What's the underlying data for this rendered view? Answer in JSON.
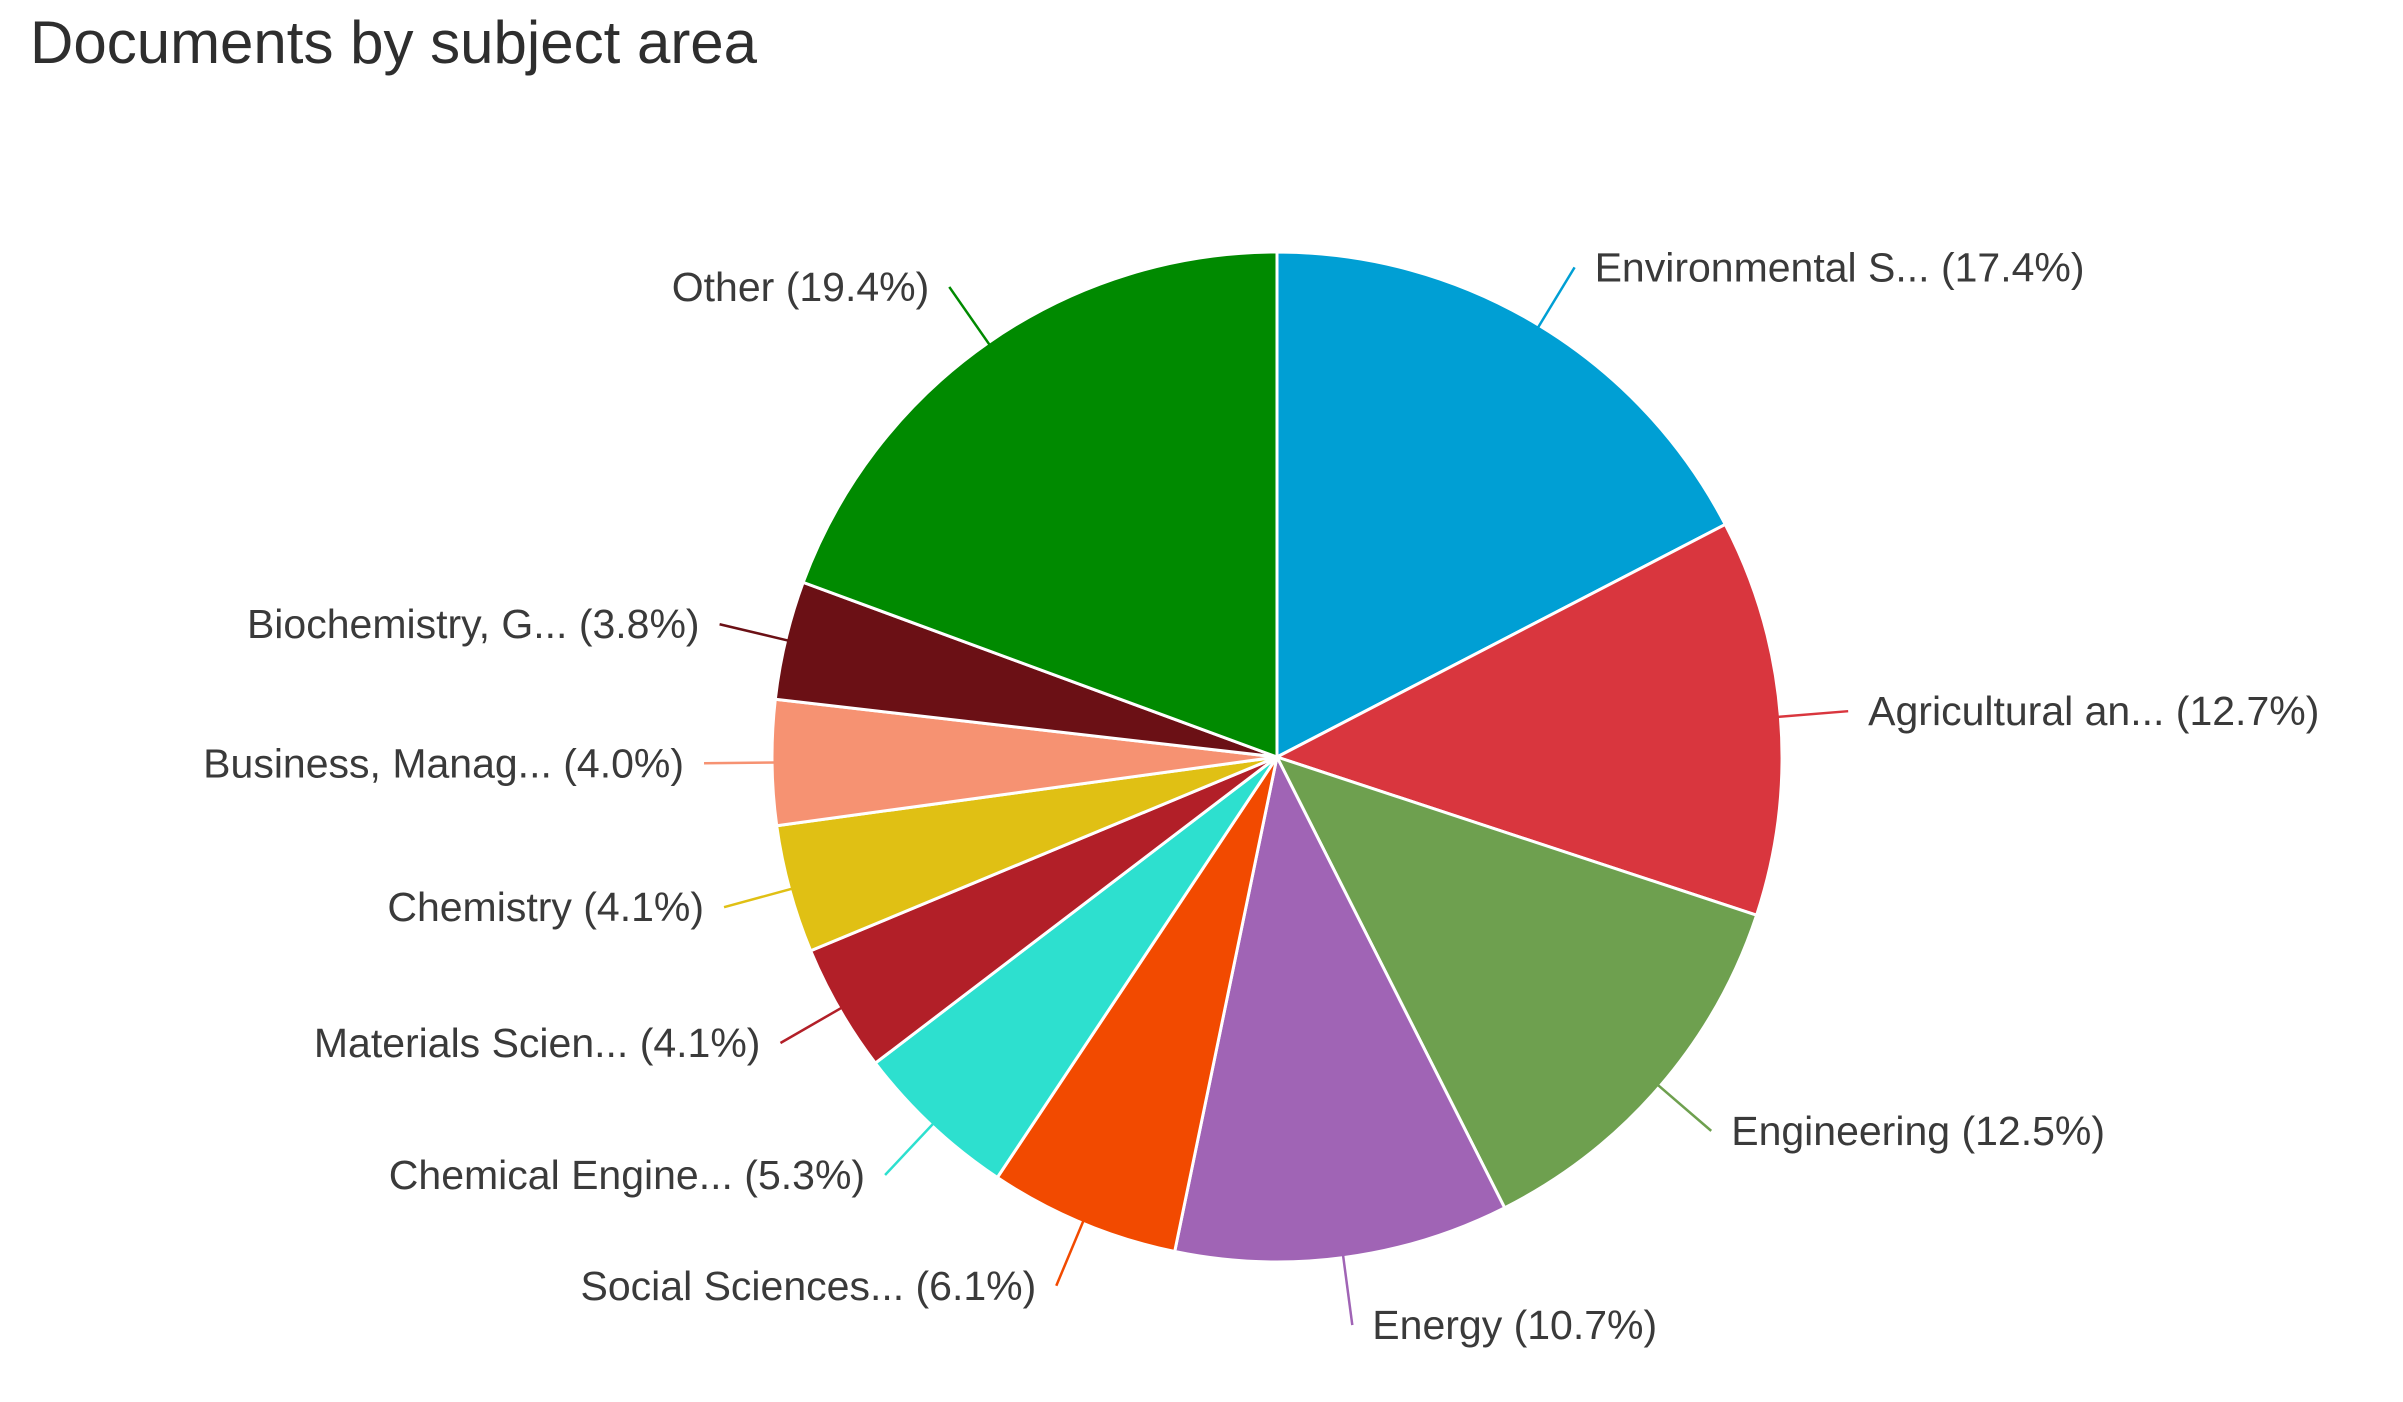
{
  "chart_data": {
    "type": "pie",
    "title": "Documents by subject area",
    "series": [
      {
        "values": [
          17.4,
          12.7,
          12.5,
          10.7,
          6.1,
          5.3,
          4.1,
          4.1,
          4.0,
          3.8,
          19.4
        ],
        "labels": [
          "Environmental S... (17.4%)",
          "Agricultural an... (12.7%)",
          "Engineering (12.5%)",
          "Energy (10.7%)",
          "Social Sciences... (6.1%)",
          "Chemical Engine... (5.3%)",
          "Materials Scien... (4.1%)",
          "Chemistry (4.1%)",
          "Business, Manag... (4.0%)",
          "Biochemistry, G... (3.8%)",
          "Other (19.4%)"
        ],
        "colors": [
          "#009fd4",
          "#d9363e",
          "#6ea04f",
          "#a064b5",
          "#f24a00",
          "#2de0cf",
          "#b21f28",
          "#e0c014",
          "#f69272",
          "#6b1015",
          "#008a00"
        ]
      }
    ],
    "start_angle_deg": 0,
    "direction": "clockwise",
    "legend": "none"
  }
}
